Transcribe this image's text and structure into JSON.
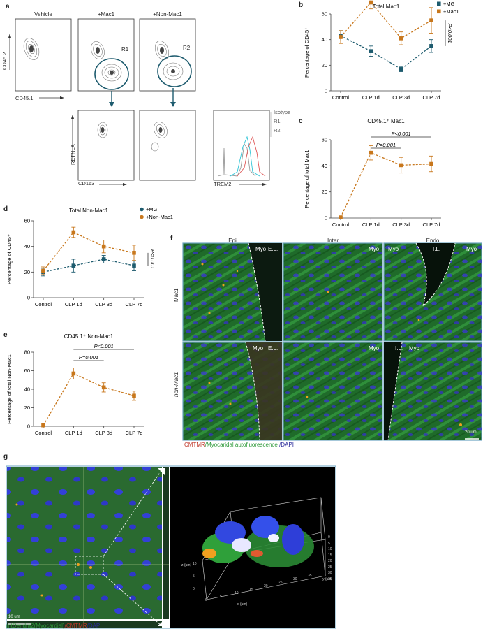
{
  "colors": {
    "mg": "#1d5b6e",
    "mac": "#c8771c",
    "bluebox": "#6aa3c0",
    "cmtmr": "#c0392b",
    "green": "#2e9a3a",
    "dapi": "#2a2a9a"
  },
  "panel_a": {
    "label": "a",
    "titles": [
      "Vehicle",
      "+Mac1",
      "+Non-Mac1"
    ],
    "ylab1": "CD45.2",
    "xlab1": "CD45.1",
    "gate1": "R1",
    "gate2": "R2",
    "ylab2": "RETNLA",
    "xlab2": "CD163",
    "xlab3": "TREM2",
    "legend": [
      "Isotype",
      "R1",
      "R2"
    ]
  },
  "panel_f": {
    "label": "f",
    "cols": [
      "Epi",
      "Inter",
      "Endo"
    ],
    "rows": [
      "Mac1",
      "non-Mac1"
    ],
    "myo": "Myo",
    "el": "E.L.",
    "il": "I.L.",
    "scale": "20 um",
    "cap_a": "CMTMR",
    "cap_b": "/Myocaridal autofluorescence",
    "cap_c": " /DAPI"
  },
  "panel_g": {
    "label": "g",
    "scale": "10 um",
    "cap_a": "mtDendra2(Myocardial)",
    "cap_b": "/CMTMR",
    "cap_c": "/DAPI",
    "axis_x": "x (μm)",
    "axis_y": "y (μm)",
    "axis_z": "z (μm)",
    "xticks": [
      "0",
      "5",
      "10",
      "15",
      "20",
      "25",
      "30",
      "35"
    ],
    "yticks": [
      "0",
      "5",
      "10",
      "15",
      "20",
      "25",
      "30",
      "35"
    ],
    "zticks": [
      "0",
      "5",
      "10"
    ]
  },
  "chart_data": [
    {
      "panel": "b",
      "type": "line",
      "title": "Total Mac1",
      "ylabel": "Percentage of CD45⁺",
      "xlabel": "",
      "categories": [
        "Control",
        "CLP 1d",
        "CLP 3d",
        "CLP 7d"
      ],
      "ylim": [
        0,
        60
      ],
      "yticks": [
        0,
        20,
        40,
        60
      ],
      "series": [
        {
          "name": "+MG",
          "values": [
            43,
            31,
            17,
            35
          ],
          "err": [
            4,
            4,
            2,
            5
          ]
        },
        {
          "name": "+Mac1",
          "values": [
            42,
            69,
            41,
            55
          ],
          "err": [
            5,
            5,
            5,
            10
          ]
        }
      ],
      "annotation": "P<0.001",
      "legend_position": "top-right"
    },
    {
      "panel": "c",
      "type": "line",
      "title": "CD45.1⁺ Mac1",
      "ylabel": "Percentage of total Mac1",
      "xlabel": "",
      "categories": [
        "Control",
        "CLP 1d",
        "CLP 3d",
        "CLP 7d"
      ],
      "ylim": [
        0,
        60
      ],
      "yticks": [
        0,
        20,
        40,
        60
      ],
      "series": [
        {
          "name": "",
          "values": [
            0.5,
            50,
            40.5,
            41.5
          ],
          "err": [
            0,
            5.5,
            6,
            6
          ]
        }
      ],
      "brackets": [
        {
          "from": 1,
          "to": 3,
          "text": "P<0.001"
        },
        {
          "from": 1,
          "to": 2,
          "text": "P=0.001"
        }
      ]
    },
    {
      "panel": "d",
      "type": "line",
      "title": "Total Non-Mac1",
      "ylabel": "Percentage of CD45⁺",
      "xlabel": "",
      "categories": [
        "Control",
        "CLP 1d",
        "CLP 3d",
        "CLP 7d"
      ],
      "ylim": [
        0,
        60
      ],
      "yticks": [
        0,
        20,
        40,
        60
      ],
      "series": [
        {
          "name": "+MG",
          "values": [
            20,
            25,
            30,
            25
          ],
          "err": [
            3,
            5,
            3,
            4
          ]
        },
        {
          "name": "+Non-Mac1",
          "values": [
            21,
            51,
            40,
            35
          ],
          "err": [
            3,
            4,
            5,
            6
          ]
        }
      ],
      "annotation": "P<0.001",
      "legend_position": "top-right"
    },
    {
      "panel": "e",
      "type": "line",
      "title": "CD45.1⁺ Non-Mac1",
      "ylabel": "Percentage of total Non-Mac1",
      "xlabel": "",
      "categories": [
        "Control",
        "CLP 1d",
        "CLP 3d",
        "CLP 7d"
      ],
      "ylim": [
        0,
        80
      ],
      "yticks": [
        0,
        20,
        40,
        60,
        80
      ],
      "series": [
        {
          "name": "",
          "values": [
            1,
            57,
            42,
            33
          ],
          "err": [
            0,
            6,
            5,
            5
          ]
        }
      ],
      "brackets": [
        {
          "from": 1,
          "to": 3,
          "text": "P<0.001"
        },
        {
          "from": 1,
          "to": 2,
          "text": "P=0.001"
        }
      ]
    }
  ]
}
